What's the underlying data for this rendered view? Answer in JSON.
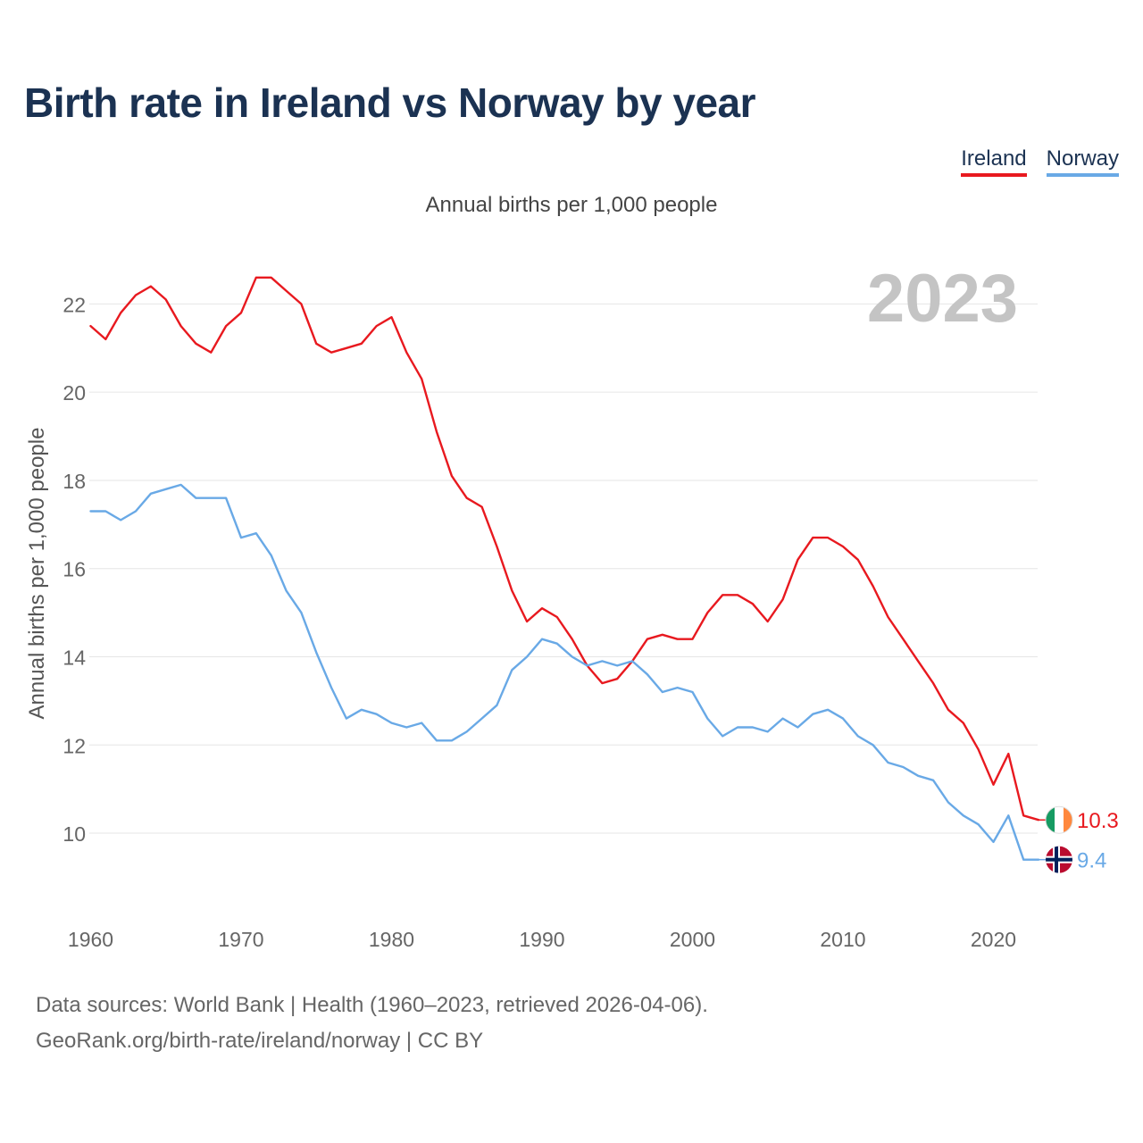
{
  "chart_data": {
    "type": "line",
    "title": "Birth rate in Ireland vs Norway by year",
    "subtitle": "Annual births per 1,000 people",
    "ylabel": "Annual births per 1,000 people",
    "xlabel": "",
    "year_label": "2023",
    "xlim": [
      1960,
      2023
    ],
    "ylim": [
      8.3,
      23.0
    ],
    "x_ticks": [
      1960,
      1970,
      1980,
      1990,
      2000,
      2010,
      2020
    ],
    "y_ticks": [
      10,
      12,
      14,
      16,
      18,
      20,
      22
    ],
    "grid": true,
    "legend_position": "top-right",
    "x": [
      1960,
      1961,
      1962,
      1963,
      1964,
      1965,
      1966,
      1967,
      1968,
      1969,
      1970,
      1971,
      1972,
      1973,
      1974,
      1975,
      1976,
      1977,
      1978,
      1979,
      1980,
      1981,
      1982,
      1983,
      1984,
      1985,
      1986,
      1987,
      1988,
      1989,
      1990,
      1991,
      1992,
      1993,
      1994,
      1995,
      1996,
      1997,
      1998,
      1999,
      2000,
      2001,
      2002,
      2003,
      2004,
      2005,
      2006,
      2007,
      2008,
      2009,
      2010,
      2011,
      2012,
      2013,
      2014,
      2015,
      2016,
      2017,
      2018,
      2019,
      2020,
      2021,
      2022,
      2023
    ],
    "series": [
      {
        "name": "Ireland",
        "color": "#e8191f",
        "end_label": "10.3",
        "values": [
          21.5,
          21.2,
          21.8,
          22.2,
          22.4,
          22.1,
          21.5,
          21.1,
          20.9,
          21.5,
          21.8,
          22.6,
          22.6,
          22.3,
          22.0,
          21.1,
          20.9,
          21.0,
          21.1,
          21.5,
          21.7,
          20.9,
          20.3,
          19.1,
          18.1,
          17.6,
          17.4,
          16.5,
          15.5,
          14.8,
          15.1,
          14.9,
          14.4,
          13.8,
          13.4,
          13.5,
          13.9,
          14.4,
          14.5,
          14.4,
          14.4,
          15.0,
          15.4,
          15.4,
          15.2,
          14.8,
          15.3,
          16.2,
          16.7,
          16.7,
          16.5,
          16.2,
          15.6,
          14.9,
          14.4,
          13.9,
          13.4,
          12.8,
          12.5,
          11.9,
          11.1,
          11.8,
          10.4,
          10.3
        ]
      },
      {
        "name": "Norway",
        "color": "#69a9e6",
        "end_label": "9.4",
        "values": [
          17.3,
          17.3,
          17.1,
          17.3,
          17.7,
          17.8,
          17.9,
          17.6,
          17.6,
          17.6,
          16.7,
          16.8,
          16.3,
          15.5,
          15.0,
          14.1,
          13.3,
          12.6,
          12.8,
          12.7,
          12.5,
          12.4,
          12.5,
          12.1,
          12.1,
          12.3,
          12.6,
          12.9,
          13.7,
          14.0,
          14.4,
          14.3,
          14.0,
          13.8,
          13.9,
          13.8,
          13.9,
          13.6,
          13.2,
          13.3,
          13.2,
          12.6,
          12.2,
          12.4,
          12.4,
          12.3,
          12.6,
          12.4,
          12.7,
          12.8,
          12.6,
          12.2,
          12.0,
          11.6,
          11.5,
          11.3,
          11.2,
          10.7,
          10.4,
          10.2,
          9.8,
          10.4,
          9.4,
          9.4
        ]
      }
    ]
  },
  "legend": {
    "ireland": "Ireland",
    "norway": "Norway"
  },
  "footer": {
    "line1": "Data sources: World Bank | Health (1960–2023, retrieved 2026-04-06).",
    "line2": "GeoRank.org/birth-rate/ireland/norway | CC BY"
  },
  "colors": {
    "title": "#1b3252",
    "grid": "#e6e6e6",
    "axis_text": "#666666",
    "year_label": "#c4c4c4"
  }
}
